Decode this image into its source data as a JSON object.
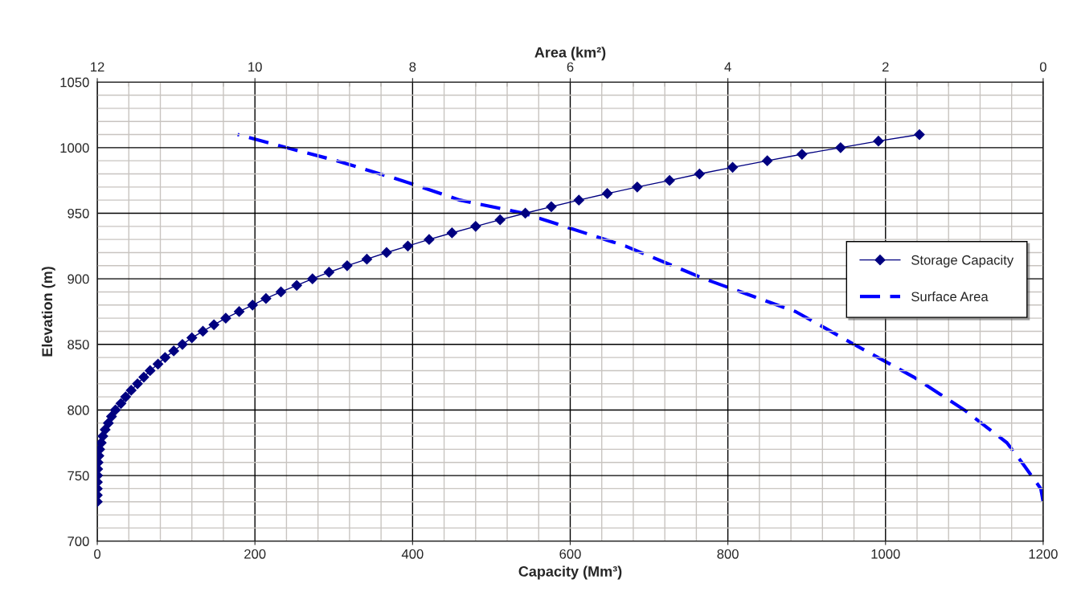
{
  "chart_data": {
    "type": "line",
    "xlabel": "Capacity (Mm³)",
    "x2label": "Area (km²)",
    "ylabel": "Elevation (m)",
    "xlim": [
      0,
      1200
    ],
    "xticks": [
      0,
      200,
      400,
      600,
      800,
      1000,
      1200
    ],
    "x2lim": [
      12,
      0
    ],
    "x2ticks": [
      12,
      10,
      8,
      6,
      4,
      2,
      0
    ],
    "ylim": [
      700,
      1050
    ],
    "yticks": [
      700,
      750,
      800,
      850,
      900,
      950,
      1000,
      1050
    ],
    "grid": true,
    "legend": "right",
    "series": [
      {
        "name": "Storage Capacity",
        "color": "#000080",
        "marker": "diamond",
        "line_style": "solid",
        "values": [
          730,
          735,
          740,
          745,
          750,
          755,
          760,
          765,
          770,
          775,
          780,
          785,
          790,
          795,
          800,
          805,
          810,
          815,
          820,
          825,
          830,
          835,
          840,
          845,
          850,
          855,
          860,
          865,
          870,
          875,
          880,
          885,
          890,
          895,
          900,
          905,
          910,
          915,
          920,
          925,
          930,
          935,
          940,
          945,
          950,
          955,
          960,
          965,
          970,
          975,
          980,
          985,
          990,
          995,
          1000,
          1005,
          1010
        ],
        "x": [
          0,
          0,
          0,
          0.1,
          0.3,
          0.5,
          1,
          2,
          3,
          5,
          7,
          10,
          14,
          18,
          23,
          30,
          36,
          43,
          51,
          59,
          67,
          77,
          86,
          97,
          108,
          120,
          134,
          148,
          163,
          180,
          197,
          214,
          233,
          253,
          273,
          294,
          317,
          342,
          367,
          394,
          421,
          450,
          480,
          511,
          543,
          576,
          611,
          647,
          685,
          726,
          764,
          806,
          850,
          894,
          943,
          991,
          1043
        ]
      },
      {
        "name": "Surface Area",
        "color": "#0000ff",
        "axis": "x2",
        "marker": "none",
        "line_style": "dashed",
        "values": [
          730,
          740,
          750,
          760,
          775,
          800,
          825,
          850,
          875,
          900,
          925,
          950,
          960,
          975,
          990,
          1000,
          1010
        ],
        "x": [
          0,
          0.03,
          0.15,
          0.27,
          0.46,
          1.0,
          1.64,
          2.4,
          3.14,
          4.3,
          5.3,
          6.59,
          7.4,
          8.14,
          8.96,
          9.6,
          10.22
        ]
      }
    ]
  }
}
